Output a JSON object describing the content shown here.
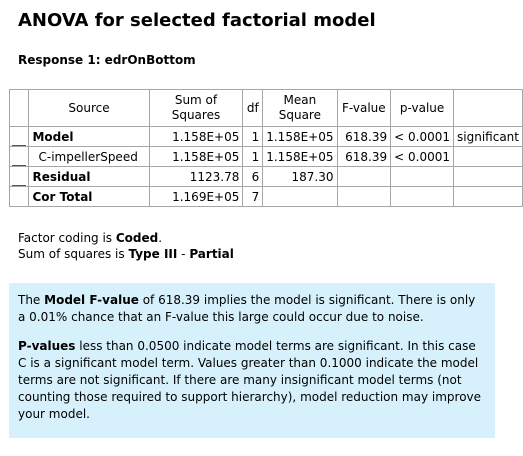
{
  "title": "ANOVA for selected factorial model",
  "response_label": "Response 1: edrOnBottom",
  "table": {
    "headers": {
      "source": "Source",
      "sum_of_squares_line1": "Sum of",
      "sum_of_squares_line2": "Squares",
      "df": "df",
      "mean_square_line1": "Mean",
      "mean_square_line2": "Square",
      "f_value": "F-value",
      "p_value": "p-value"
    },
    "rows": [
      {
        "source": "Model",
        "ss": "1.158E+05",
        "df": "1",
        "ms": "1.158E+05",
        "f": "618.39",
        "p": "< 0.0001",
        "note": "significant"
      },
      {
        "source": "C-impellerSpeed",
        "ss": "1.158E+05",
        "df": "1",
        "ms": "1.158E+05",
        "f": "618.39",
        "p": "< 0.0001",
        "note": ""
      },
      {
        "source": "Residual",
        "ss": "1123.78",
        "df": "6",
        "ms": "187.30",
        "f": "",
        "p": "",
        "note": ""
      },
      {
        "source": "Cor Total",
        "ss": "1.169E+05",
        "df": "7",
        "ms": "",
        "f": "",
        "p": "",
        "note": ""
      }
    ]
  },
  "coding": {
    "line1_prefix": "Factor coding is ",
    "line1_value": "Coded",
    "line1_suffix": ".",
    "line2_prefix": "Sum of squares is ",
    "line2_value1": "Type III",
    "line2_sep": " - ",
    "line2_value2": "Partial"
  },
  "notes": {
    "p1_prefix": "The ",
    "p1_bold": "Model F-value",
    "p1_rest": " of 618.39 implies the model is significant. There is only a 0.01% chance that an F-value this large could occur due to noise.",
    "p2_bold": "P-values",
    "p2_rest": " less than 0.0500 indicate model terms are significant. In this case C is a significant model term. Values greater than 0.1000 indicate the model terms are not significant. If there are many insignificant model terms (not counting those required to support hierarchy), model reduction may improve your model."
  },
  "colors": {
    "notes_background": "#d6f1fb",
    "table_border": "#a6a6a6"
  }
}
